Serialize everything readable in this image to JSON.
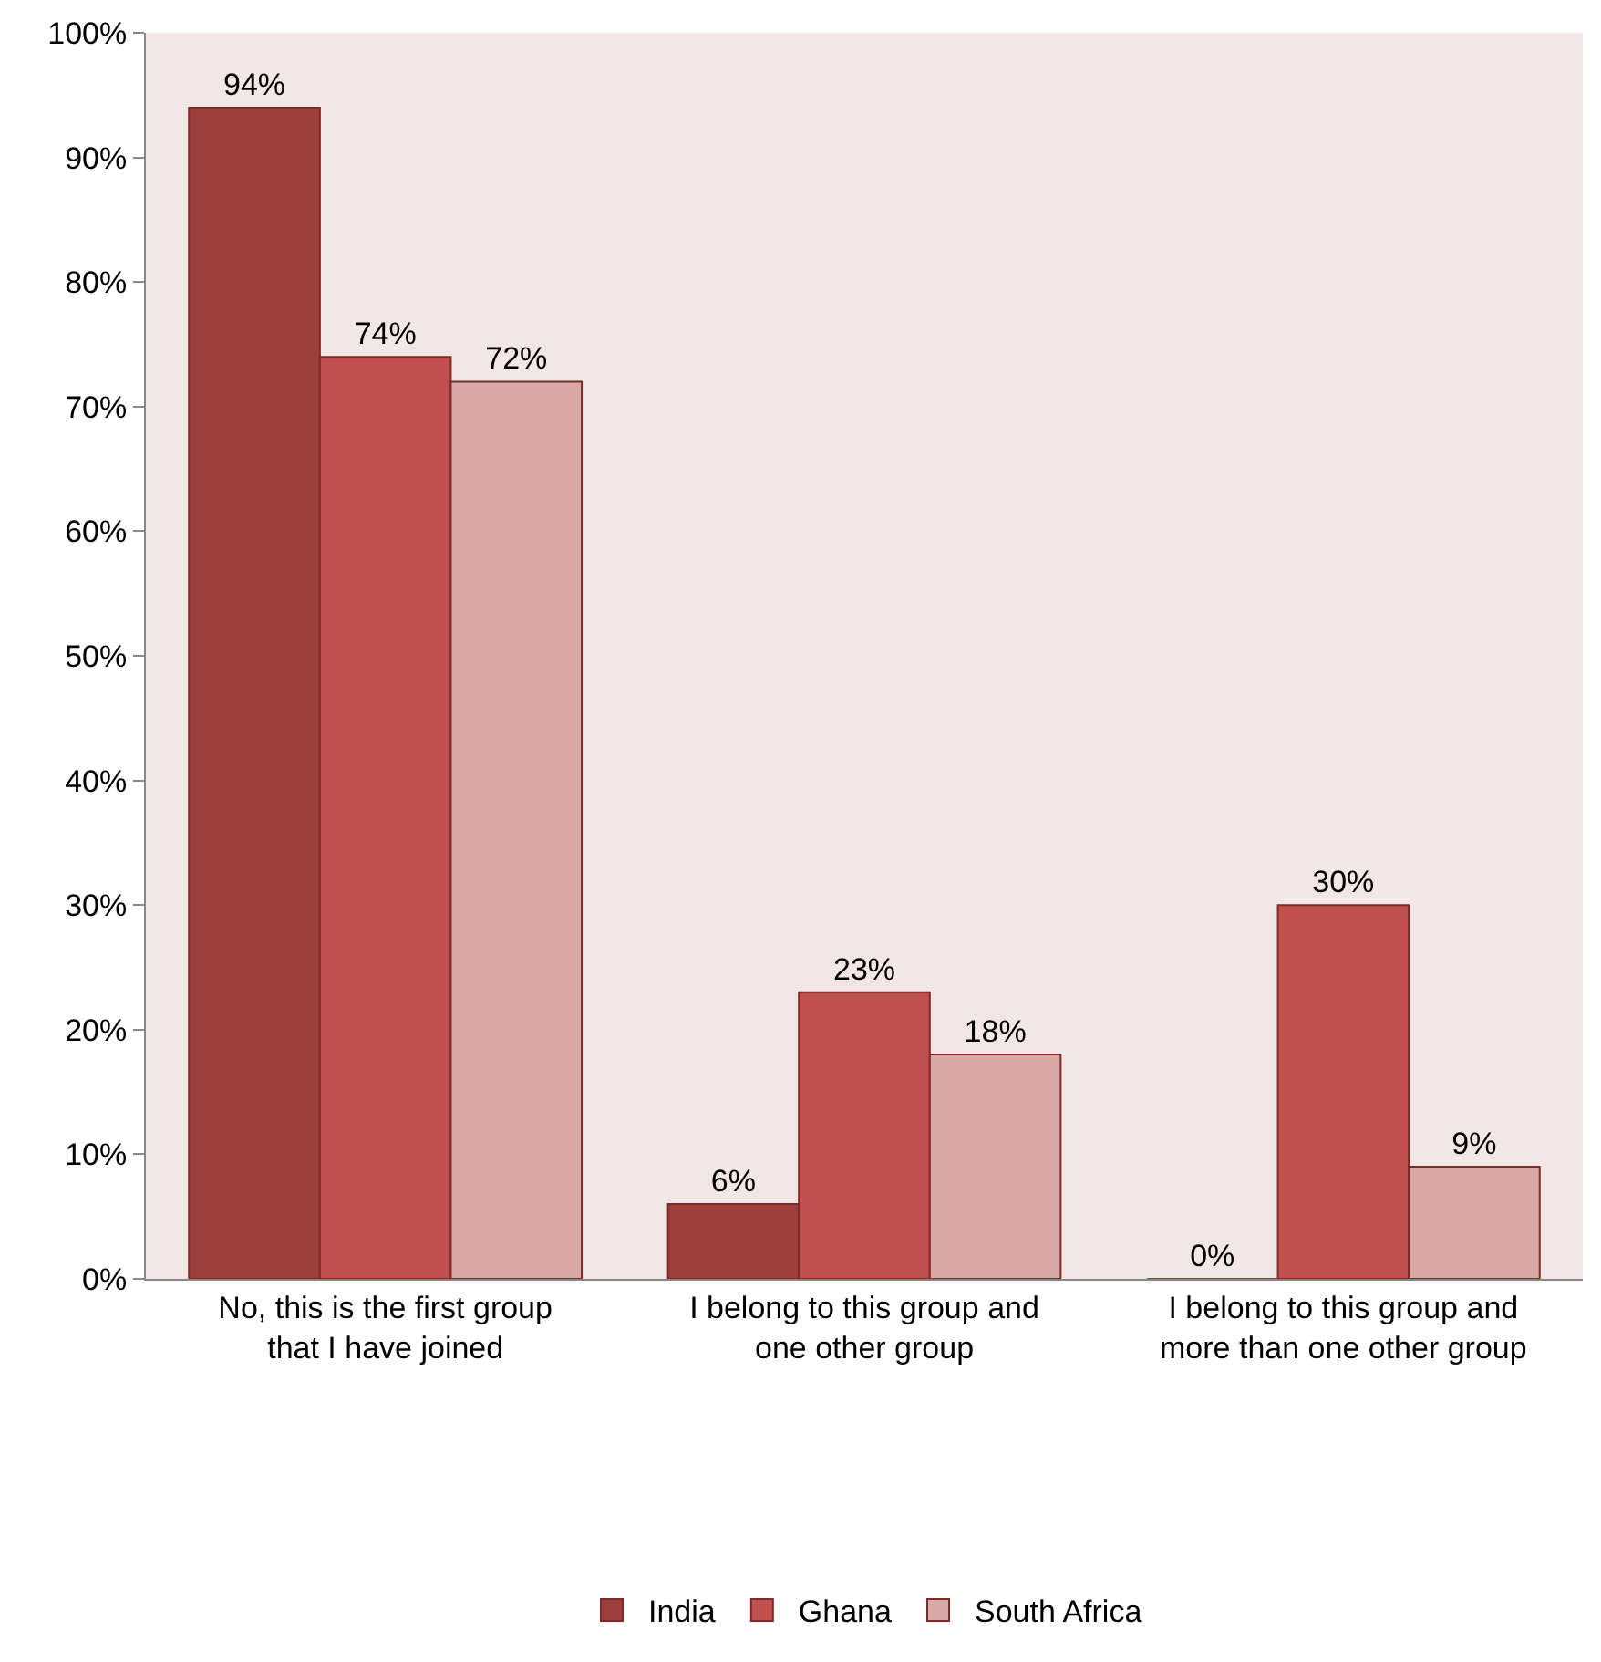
{
  "chart_data": {
    "type": "bar",
    "categories": [
      "No, this is the first group that I have joined",
      "I belong to this group and one other group",
      "I belong to this group and more than one other group"
    ],
    "series": [
      {
        "name": "India",
        "color": "#9c3e3b",
        "values": [
          94,
          6,
          0
        ],
        "value_labels": [
          "94%",
          "6%",
          "0%"
        ]
      },
      {
        "name": "Ghana",
        "color": "#c0504d",
        "values": [
          74,
          23,
          30
        ],
        "value_labels": [
          "74%",
          "23%",
          "30%"
        ]
      },
      {
        "name": "South Africa",
        "color": "#d9a9a8",
        "values": [
          72,
          18,
          9
        ],
        "value_labels": [
          "72%",
          "18%",
          "9%"
        ]
      }
    ],
    "ylim": [
      0,
      100
    ],
    "yticks": [
      {
        "value": 0,
        "label": "0%"
      },
      {
        "value": 10,
        "label": "10%"
      },
      {
        "value": 20,
        "label": "20%"
      },
      {
        "value": 30,
        "label": "30%"
      },
      {
        "value": 40,
        "label": "40%"
      },
      {
        "value": 50,
        "label": "50%"
      },
      {
        "value": 60,
        "label": "60%"
      },
      {
        "value": 70,
        "label": "70%"
      },
      {
        "value": 80,
        "label": "80%"
      },
      {
        "value": 90,
        "label": "90%"
      },
      {
        "value": 100,
        "label": "100%"
      }
    ],
    "grid": false,
    "legend": "bottom"
  }
}
